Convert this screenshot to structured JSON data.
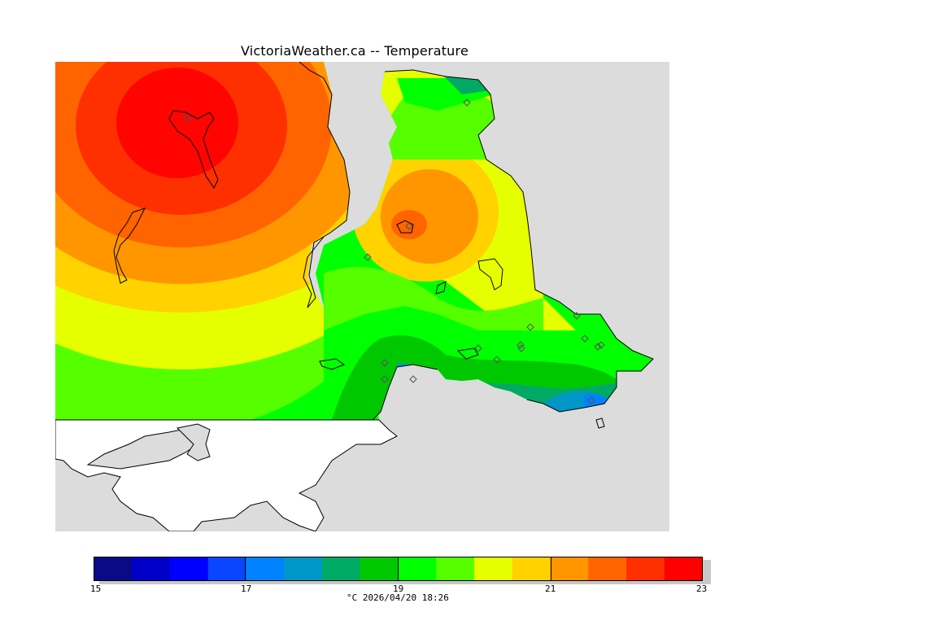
{
  "title": "VictoriaWeather.ca -- Temperature",
  "map": {
    "stations_count_shown": 17,
    "background_color": "#dcdcdc",
    "contour_colors": [
      "#ff0000",
      "#ff3000",
      "#ff6400",
      "#ff9600",
      "#ffd200",
      "#ffff00",
      "#55ff00",
      "#00ff00",
      "#00c800",
      "#00aa64"
    ]
  },
  "legend": {
    "unit_caption": "°C  2026/04/20 18:26",
    "min": 15,
    "max": 23,
    "ticks": [
      "15",
      "17",
      "19",
      "21",
      "23"
    ],
    "colors": [
      "#0a0a87",
      "#0000c8",
      "#0000ff",
      "#0a46ff",
      "#0082ff",
      "#0096c8",
      "#00aa64",
      "#00c800",
      "#00ff00",
      "#55ff00",
      "#e6ff00",
      "#ffd200",
      "#ff9600",
      "#ff6400",
      "#ff3000",
      "#ff0000"
    ]
  }
}
